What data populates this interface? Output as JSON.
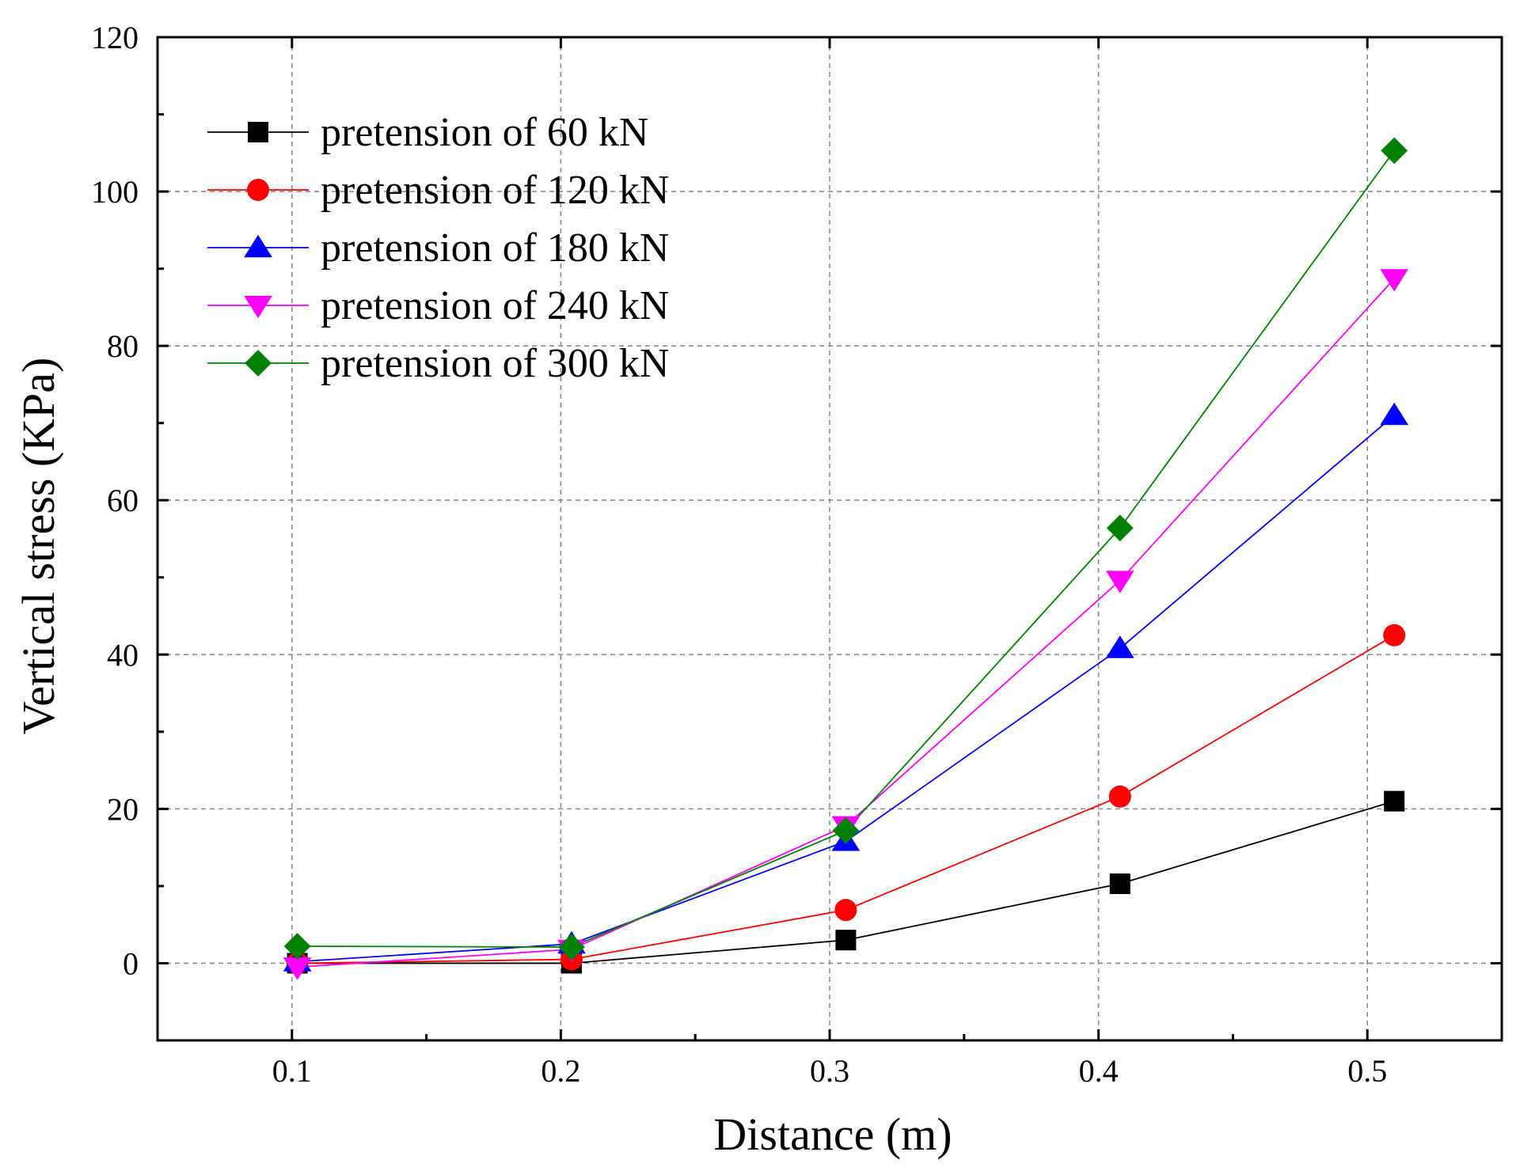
{
  "chart_data": {
    "type": "line",
    "xlabel": "Distance (m)",
    "ylabel": "Vertical stress (KPa)",
    "xlim": [
      0.05,
      0.55
    ],
    "ylim": [
      -10,
      120
    ],
    "x_ticks": [
      0.1,
      0.2,
      0.3,
      0.4,
      0.5
    ],
    "x_tick_labels": [
      "0.1",
      "0.2",
      "0.3",
      "0.4",
      "0.5"
    ],
    "y_ticks": [
      0,
      20,
      40,
      60,
      80,
      100,
      120
    ],
    "y_tick_labels": [
      "0",
      "20",
      "40",
      "60",
      "80",
      "100",
      "120"
    ],
    "grid": true,
    "legend_position": "top-left",
    "x": [
      0.102,
      0.204,
      0.306,
      0.408,
      0.51
    ],
    "series": [
      {
        "name": "pretension of 60 kN",
        "color": "#000000",
        "marker": "square",
        "values": [
          0.0,
          0.0,
          3.0,
          10.3,
          21.0
        ]
      },
      {
        "name": "pretension of 120 kN",
        "color": "#ff0000",
        "marker": "circle",
        "values": [
          0.0,
          0.5,
          6.9,
          21.6,
          42.5
        ]
      },
      {
        "name": "pretension of 180 kN",
        "color": "#0000ff",
        "marker": "triangle-up",
        "values": [
          0.2,
          2.5,
          15.8,
          40.8,
          71.0
        ]
      },
      {
        "name": "pretension of 240 kN",
        "color": "#ff00ff",
        "marker": "triangle-down",
        "values": [
          -0.5,
          1.8,
          17.8,
          49.6,
          88.7
        ]
      },
      {
        "name": "pretension of 300 kN",
        "color": "#008000",
        "marker": "diamond",
        "values": [
          2.2,
          2.1,
          17.2,
          56.4,
          105.3
        ]
      }
    ]
  }
}
